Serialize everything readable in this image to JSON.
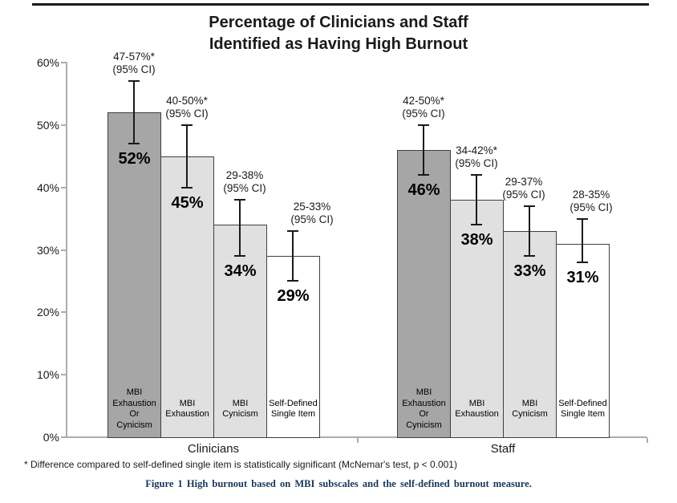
{
  "chart_data": {
    "type": "bar",
    "title": "Percentage of Clinicians and Staff Identified as Having High Burnout",
    "title_lines": [
      "Percentage of Clinicians and Staff",
      "Identified as Having High Burnout"
    ],
    "ylim": [
      0,
      60
    ],
    "yticks": [
      {
        "value": 0,
        "label": "0%"
      },
      {
        "value": 10,
        "label": "10%"
      },
      {
        "value": 20,
        "label": "20%"
      },
      {
        "value": 30,
        "label": "30%"
      },
      {
        "value": 40,
        "label": "40%"
      },
      {
        "value": 50,
        "label": "50%"
      },
      {
        "value": 60,
        "label": "60%"
      }
    ],
    "grid": false,
    "legend": "none",
    "groups": [
      {
        "label": "Clinicians",
        "bars": [
          {
            "measure": "MBI Exhaustion Or Cynicism",
            "measure_lines": [
              "MBI",
              "Exhaustion",
              "Or",
              "Cynicism"
            ],
            "value": 52,
            "value_label": "52%",
            "ci_low": 47,
            "ci_high": 57,
            "ci_line1": "47-57%*",
            "ci_line2": "(95% CI)",
            "fill_key": "bar_dark"
          },
          {
            "measure": "MBI Exhaustion",
            "measure_lines": [
              "MBI",
              "Exhaustion"
            ],
            "value": 45,
            "value_label": "45%",
            "ci_low": 40,
            "ci_high": 50,
            "ci_line1": "40-50%*",
            "ci_line2": "(95% CI)",
            "fill_key": "bar_light"
          },
          {
            "measure": "MBI Cynicism",
            "measure_lines": [
              "MBI",
              "Cynicism"
            ],
            "value": 34,
            "value_label": "34%",
            "ci_low": 29,
            "ci_high": 38,
            "ci_line1": "29-38%",
            "ci_line2": "(95% CI)",
            "fill_key": "bar_light"
          },
          {
            "measure": "Self-Defined Single Item",
            "measure_lines": [
              "Self-Defined",
              "Single Item"
            ],
            "value": 29,
            "value_label": "29%",
            "ci_low": 25,
            "ci_high": 33,
            "ci_line1": "25-33%",
            "ci_line2": "(95% CI)",
            "fill_key": "bar_white"
          }
        ]
      },
      {
        "label": "Staff",
        "bars": [
          {
            "measure": "MBI Exhaustion Or Cynicism",
            "measure_lines": [
              "MBI",
              "Exhaustion",
              "Or",
              "Cynicism"
            ],
            "value": 46,
            "value_label": "46%",
            "ci_low": 42,
            "ci_high": 50,
            "ci_line1": "42-50%*",
            "ci_line2": "(95% CI)",
            "fill_key": "bar_dark"
          },
          {
            "measure": "MBI Exhaustion",
            "measure_lines": [
              "MBI",
              "Exhaustion"
            ],
            "value": 38,
            "value_label": "38%",
            "ci_low": 34,
            "ci_high": 42,
            "ci_line1": "34-42%*",
            "ci_line2": "(95% CI)",
            "fill_key": "bar_light"
          },
          {
            "measure": "MBI Cynicism",
            "measure_lines": [
              "MBI",
              "Cynicism"
            ],
            "value": 33,
            "value_label": "33%",
            "ci_low": 29,
            "ci_high": 37,
            "ci_line1": "29-37%",
            "ci_line2": "(95% CI)",
            "fill_key": "bar_light"
          },
          {
            "measure": "Self-Defined Single Item",
            "measure_lines": [
              "Self-Defined",
              "Single Item"
            ],
            "value": 31,
            "value_label": "31%",
            "ci_low": 28,
            "ci_high": 35,
            "ci_line1": "28-35%",
            "ci_line2": "(95% CI)",
            "fill_key": "bar_white"
          }
        ]
      }
    ],
    "footnote": "* Difference compared to self-defined single item is statistically significant (McNemar's test, p < 0.001)",
    "caption": "Figure 1 High burnout based on MBI subscales and the self-defined burnout measure."
  },
  "colors": {
    "bar_dark": "#a6a6a6",
    "bar_light": "#e0e0e0",
    "bar_white": "#ffffff",
    "bar_border": "#3f3f3f",
    "axis": "#adadad",
    "error_bar": "#1a1a1a",
    "caption_text": "#17365d"
  }
}
